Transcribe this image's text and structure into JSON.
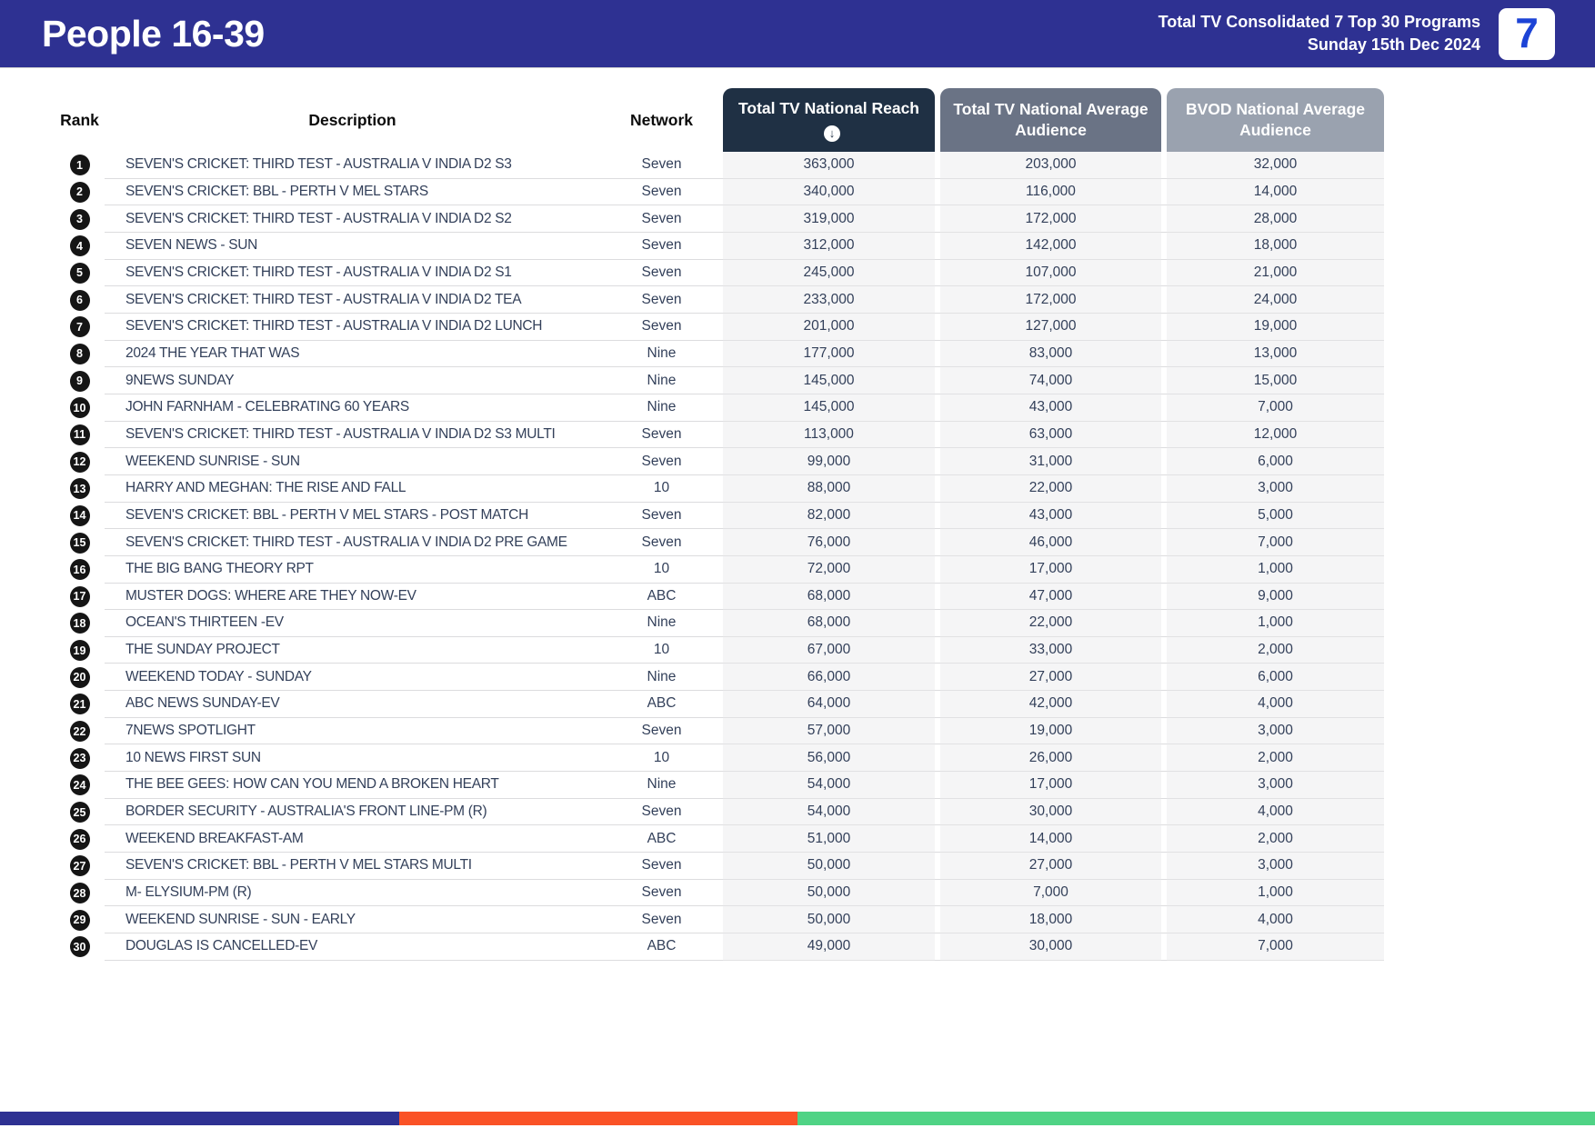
{
  "header": {
    "title": "People 16-39",
    "subtitle_line1": "Total TV Consolidated 7 Top 30 Programs",
    "subtitle_line2": "Sunday 15th Dec 2024",
    "logo_text": "7"
  },
  "columns": {
    "rank": "Rank",
    "description": "Description",
    "network": "Network",
    "reach": "Total TV National Reach",
    "avg_audience": "Total TV National Average Audience",
    "bvod_audience": "BVOD National Average Audience"
  },
  "icons": {
    "sort_desc": "↓"
  },
  "colors": {
    "topbar_bg": "#2E3192",
    "reach_header_bg": "#1F3044",
    "avg_header_bg": "#6A7385",
    "bvod_header_bg": "#9AA2AF",
    "row_text": "#33405A",
    "numeric_cell_bg": "#F5F5F6",
    "rank_badge_bg": "#151515",
    "stripe_blue": "#2E3192",
    "stripe_orange": "#FA5226",
    "stripe_green": "#4FD385",
    "logo_seven_blue": "#1C43D6"
  },
  "rows": [
    {
      "rank": "1",
      "description": "SEVEN'S CRICKET: THIRD TEST - AUSTRALIA V INDIA D2 S3",
      "network": "Seven",
      "reach": "363,000",
      "avg_audience": "203,000",
      "bvod_audience": "32,000"
    },
    {
      "rank": "2",
      "description": "SEVEN'S CRICKET: BBL - PERTH V MEL STARS",
      "network": "Seven",
      "reach": "340,000",
      "avg_audience": "116,000",
      "bvod_audience": "14,000"
    },
    {
      "rank": "3",
      "description": "SEVEN'S CRICKET: THIRD TEST - AUSTRALIA V INDIA D2 S2",
      "network": "Seven",
      "reach": "319,000",
      "avg_audience": "172,000",
      "bvod_audience": "28,000"
    },
    {
      "rank": "4",
      "description": "SEVEN NEWS - SUN",
      "network": "Seven",
      "reach": "312,000",
      "avg_audience": "142,000",
      "bvod_audience": "18,000"
    },
    {
      "rank": "5",
      "description": "SEVEN'S CRICKET: THIRD TEST - AUSTRALIA V INDIA D2 S1",
      "network": "Seven",
      "reach": "245,000",
      "avg_audience": "107,000",
      "bvod_audience": "21,000"
    },
    {
      "rank": "6",
      "description": "SEVEN'S CRICKET: THIRD TEST - AUSTRALIA V INDIA D2 TEA",
      "network": "Seven",
      "reach": "233,000",
      "avg_audience": "172,000",
      "bvod_audience": "24,000"
    },
    {
      "rank": "7",
      "description": "SEVEN'S CRICKET: THIRD TEST - AUSTRALIA V INDIA D2 LUNCH",
      "network": "Seven",
      "reach": "201,000",
      "avg_audience": "127,000",
      "bvod_audience": "19,000"
    },
    {
      "rank": "8",
      "description": "2024 THE YEAR THAT WAS",
      "network": "Nine",
      "reach": "177,000",
      "avg_audience": "83,000",
      "bvod_audience": "13,000"
    },
    {
      "rank": "9",
      "description": "9NEWS SUNDAY",
      "network": "Nine",
      "reach": "145,000",
      "avg_audience": "74,000",
      "bvod_audience": "15,000"
    },
    {
      "rank": "10",
      "description": "JOHN FARNHAM - CELEBRATING 60 YEARS",
      "network": "Nine",
      "reach": "145,000",
      "avg_audience": "43,000",
      "bvod_audience": "7,000"
    },
    {
      "rank": "11",
      "description": "SEVEN'S CRICKET: THIRD TEST - AUSTRALIA V INDIA D2 S3 MULTI",
      "network": "Seven",
      "reach": "113,000",
      "avg_audience": "63,000",
      "bvod_audience": "12,000"
    },
    {
      "rank": "12",
      "description": "WEEKEND SUNRISE - SUN",
      "network": "Seven",
      "reach": "99,000",
      "avg_audience": "31,000",
      "bvod_audience": "6,000"
    },
    {
      "rank": "13",
      "description": "HARRY AND MEGHAN: THE RISE AND FALL",
      "network": "10",
      "reach": "88,000",
      "avg_audience": "22,000",
      "bvod_audience": "3,000"
    },
    {
      "rank": "14",
      "description": "SEVEN'S CRICKET: BBL - PERTH V MEL STARS - POST MATCH",
      "network": "Seven",
      "reach": "82,000",
      "avg_audience": "43,000",
      "bvod_audience": "5,000"
    },
    {
      "rank": "15",
      "description": "SEVEN'S CRICKET: THIRD TEST - AUSTRALIA V INDIA D2 PRE GAME",
      "network": "Seven",
      "reach": "76,000",
      "avg_audience": "46,000",
      "bvod_audience": "7,000"
    },
    {
      "rank": "16",
      "description": "THE BIG BANG THEORY RPT",
      "network": "10",
      "reach": "72,000",
      "avg_audience": "17,000",
      "bvod_audience": "1,000"
    },
    {
      "rank": "17",
      "description": "MUSTER DOGS: WHERE ARE THEY NOW-EV",
      "network": "ABC",
      "reach": "68,000",
      "avg_audience": "47,000",
      "bvod_audience": "9,000"
    },
    {
      "rank": "18",
      "description": "OCEAN'S THIRTEEN -EV",
      "network": "Nine",
      "reach": "68,000",
      "avg_audience": "22,000",
      "bvod_audience": "1,000"
    },
    {
      "rank": "19",
      "description": "THE SUNDAY PROJECT",
      "network": "10",
      "reach": "67,000",
      "avg_audience": "33,000",
      "bvod_audience": "2,000"
    },
    {
      "rank": "20",
      "description": "WEEKEND TODAY - SUNDAY",
      "network": "Nine",
      "reach": "66,000",
      "avg_audience": "27,000",
      "bvod_audience": "6,000"
    },
    {
      "rank": "21",
      "description": "ABC NEWS SUNDAY-EV",
      "network": "ABC",
      "reach": "64,000",
      "avg_audience": "42,000",
      "bvod_audience": "4,000"
    },
    {
      "rank": "22",
      "description": "7NEWS SPOTLIGHT",
      "network": "Seven",
      "reach": "57,000",
      "avg_audience": "19,000",
      "bvod_audience": "3,000"
    },
    {
      "rank": "23",
      "description": "10 NEWS FIRST SUN",
      "network": "10",
      "reach": "56,000",
      "avg_audience": "26,000",
      "bvod_audience": "2,000"
    },
    {
      "rank": "24",
      "description": "THE BEE GEES: HOW CAN YOU MEND A BROKEN HEART",
      "network": "Nine",
      "reach": "54,000",
      "avg_audience": "17,000",
      "bvod_audience": "3,000"
    },
    {
      "rank": "25",
      "description": "BORDER SECURITY - AUSTRALIA'S FRONT LINE-PM (R)",
      "network": "Seven",
      "reach": "54,000",
      "avg_audience": "30,000",
      "bvod_audience": "4,000"
    },
    {
      "rank": "26",
      "description": "WEEKEND BREAKFAST-AM",
      "network": "ABC",
      "reach": "51,000",
      "avg_audience": "14,000",
      "bvod_audience": "2,000"
    },
    {
      "rank": "27",
      "description": "SEVEN'S CRICKET: BBL - PERTH V MEL STARS MULTI",
      "network": "Seven",
      "reach": "50,000",
      "avg_audience": "27,000",
      "bvod_audience": "3,000"
    },
    {
      "rank": "28",
      "description": "M- ELYSIUM-PM (R)",
      "network": "Seven",
      "reach": "50,000",
      "avg_audience": "7,000",
      "bvod_audience": "1,000"
    },
    {
      "rank": "29",
      "description": "WEEKEND SUNRISE - SUN - EARLY",
      "network": "Seven",
      "reach": "50,000",
      "avg_audience": "18,000",
      "bvod_audience": "4,000"
    },
    {
      "rank": "30",
      "description": "DOUGLAS IS CANCELLED-EV",
      "network": "ABC",
      "reach": "49,000",
      "avg_audience": "30,000",
      "bvod_audience": "7,000"
    }
  ]
}
